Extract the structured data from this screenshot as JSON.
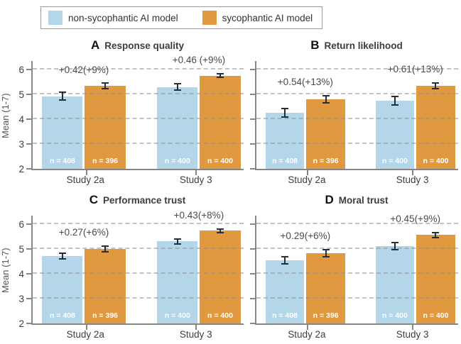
{
  "legend": {
    "items": [
      {
        "label": "non-sycophantic AI model",
        "color": "#b3d6e8"
      },
      {
        "label": "sycophantic AI model",
        "color": "#e0993e"
      }
    ]
  },
  "axis": {
    "ylabel": "Mean (1-7)",
    "yticks": [
      2,
      3,
      4,
      5,
      6
    ],
    "ylim": [
      2,
      6.35
    ],
    "grid_values": [
      3,
      4,
      5,
      6
    ]
  },
  "chart_data": [
    {
      "type": "bar",
      "panel_letter": "A",
      "title": "Response quality",
      "ylabel": "Mean (1-7)",
      "categories": [
        "Study 2a",
        "Study 3"
      ],
      "series": [
        {
          "name": "non-sycophantic AI model",
          "color": "#b3d6e8",
          "values": [
            4.93,
            5.3
          ],
          "errors": [
            0.18,
            0.15
          ]
        },
        {
          "name": "sycophantic AI model",
          "color": "#e0993e",
          "values": [
            5.35,
            5.76
          ],
          "errors": [
            0.13,
            0.11
          ]
        }
      ],
      "annotations": [
        "+0.42(+9%)",
        "+0.46 (+9%)"
      ],
      "n_labels": [
        [
          "n = 408",
          "n = 396"
        ],
        [
          "n = 400",
          "n = 400"
        ]
      ],
      "ylim": [
        2,
        6.35
      ]
    },
    {
      "type": "bar",
      "panel_letter": "B",
      "title": "Return likelihood",
      "categories": [
        "Study 2a",
        "Study 3"
      ],
      "series": [
        {
          "name": "non-sycophantic AI model",
          "color": "#b3d6e8",
          "values": [
            4.27,
            4.74
          ],
          "errors": [
            0.2,
            0.2
          ]
        },
        {
          "name": "sycophantic AI model",
          "color": "#e0993e",
          "values": [
            4.81,
            5.35
          ],
          "errors": [
            0.17,
            0.15
          ]
        }
      ],
      "annotations": [
        "+0.54(+13%)",
        "+0.61(+13%)"
      ],
      "n_labels": [
        [
          "n = 408",
          "n = 396"
        ],
        [
          "n = 400",
          "n = 400"
        ]
      ],
      "ylim": [
        2,
        6.35
      ]
    },
    {
      "type": "bar",
      "panel_letter": "C",
      "title": "Performance trust",
      "ylabel": "Mean (1-7)",
      "categories": [
        "Study 2a",
        "Study 3"
      ],
      "series": [
        {
          "name": "non-sycophantic AI model",
          "color": "#b3d6e8",
          "values": [
            4.72,
            5.31
          ],
          "errors": [
            0.15,
            0.13
          ]
        },
        {
          "name": "sycophantic AI model",
          "color": "#e0993e",
          "values": [
            5.0,
            5.74
          ],
          "errors": [
            0.15,
            0.1
          ]
        }
      ],
      "annotations": [
        "+0.27(+6%)",
        "+0.43(+8%)"
      ],
      "n_labels": [
        [
          "n = 408",
          "n = 396"
        ],
        [
          "n = 400",
          "n = 400"
        ]
      ],
      "ylim": [
        2,
        6.35
      ]
    },
    {
      "type": "bar",
      "panel_letter": "D",
      "title": "Moral trust",
      "categories": [
        "Study 2a",
        "Study 3"
      ],
      "series": [
        {
          "name": "non-sycophantic AI model",
          "color": "#b3d6e8",
          "values": [
            4.55,
            5.12
          ],
          "errors": [
            0.17,
            0.17
          ]
        },
        {
          "name": "sycophantic AI model",
          "color": "#e0993e",
          "values": [
            4.84,
            5.57
          ],
          "errors": [
            0.17,
            0.13
          ]
        }
      ],
      "annotations": [
        "+0.29(+6%)",
        "+0.45(+9%)"
      ],
      "n_labels": [
        [
          "n = 408",
          "n = 396"
        ],
        [
          "n = 400",
          "n = 400"
        ]
      ],
      "ylim": [
        2,
        6.35
      ]
    }
  ]
}
